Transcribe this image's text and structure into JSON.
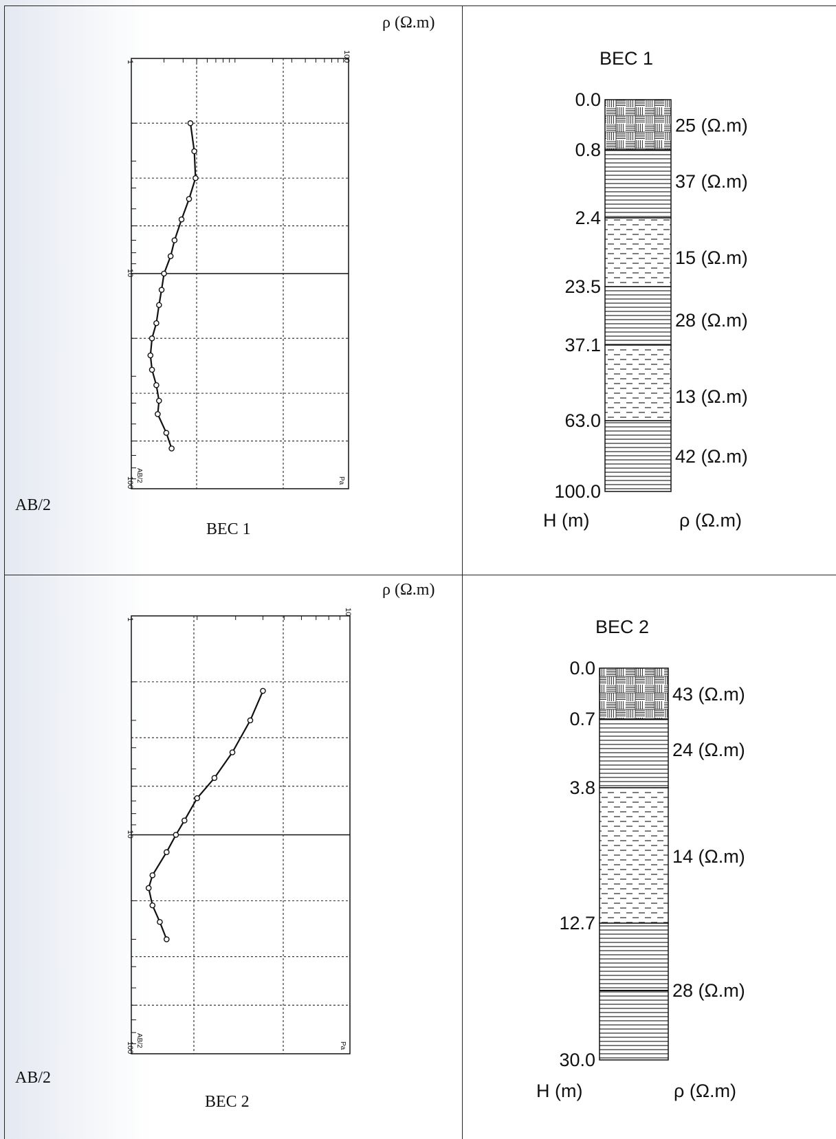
{
  "panels": [
    {
      "sounding": {
        "top_axis_label": "ρ (Ω.m)",
        "left_axis_label": "AB/2",
        "caption": "BEC 1",
        "top_tick_min": "1",
        "top_tick_max": "100",
        "left_tick_mid": "10",
        "left_tick_bottom": "100",
        "corner_left": "AB/2",
        "corner_right": "Pa"
      },
      "log": {
        "title": "BEC 1",
        "depth_label": "H (m)",
        "resistivity_label": "ρ (Ω.m)"
      }
    },
    {
      "sounding": {
        "top_axis_label": "ρ (Ω.m)",
        "left_axis_label": "AB/2",
        "caption": "BEC 2",
        "top_tick_min": "1",
        "top_tick_max": "10",
        "left_tick_mid": "10",
        "left_tick_bottom": "100",
        "corner_left": "AB/2",
        "corner_right": "Pa"
      },
      "log": {
        "title": "BEC 2",
        "depth_label": "H (m)",
        "resistivity_label": "ρ (Ω.m)"
      }
    }
  ],
  "chart_data": [
    {
      "type": "line",
      "title": "BEC 1",
      "xlabel": "ρ (Ω.m)",
      "ylabel": "AB/2",
      "x_scale": "log",
      "xlim": [
        1,
        100
      ],
      "y_scale": "log",
      "ylim": [
        1,
        100
      ],
      "y_inverted": true,
      "grid": true,
      "series": [
        {
          "x": [
            3.5,
            3.8,
            3.9,
            3.4,
            2.9,
            2.5,
            2.3,
            2.0,
            1.9,
            1.8,
            1.7,
            1.55,
            1.5,
            1.55,
            1.7,
            1.8,
            1.75,
            2.1,
            2.35
          ],
          "y": [
            2.0,
            2.7,
            3.6,
            4.5,
            5.6,
            7.0,
            8.3,
            10.0,
            11.9,
            14.0,
            17.0,
            20.0,
            24.0,
            28.0,
            33.0,
            39.0,
            45.0,
            55.0,
            65.0
          ]
        }
      ]
    },
    {
      "type": "line",
      "title": "BEC 2",
      "xlabel": "ρ (Ω.m)",
      "ylabel": "AB/2",
      "x_scale": "log",
      "xlim": [
        1,
        10
      ],
      "y_scale": "log",
      "ylim": [
        1,
        100
      ],
      "y_inverted": true,
      "grid": true,
      "series": [
        {
          "x": [
            4.0,
            3.5,
            2.9,
            2.4,
            2.0,
            1.75,
            1.6,
            1.45,
            1.25,
            1.2,
            1.25,
            1.35,
            1.45
          ],
          "y": [
            2.2,
            3.0,
            4.2,
            5.5,
            6.8,
            8.6,
            10.0,
            12.0,
            15.3,
            17.5,
            21.0,
            25.0,
            30.0
          ]
        }
      ]
    },
    {
      "type": "table",
      "title": "BEC 1",
      "columns": [
        "H (m)",
        "ρ (Ω.m)"
      ],
      "depth_max_label": "100.0",
      "layers": [
        {
          "top": "0.0",
          "resistivity": "25 (Ω.m)",
          "pattern": "brick"
        },
        {
          "top": "0.8",
          "resistivity": "37 (Ω.m)",
          "pattern": "lines"
        },
        {
          "top": "2.4",
          "resistivity": "15 (Ω.m)",
          "pattern": "dashes"
        },
        {
          "top": "23.5",
          "resistivity": "28 (Ω.m)",
          "pattern": "lines"
        },
        {
          "top": "37.1",
          "resistivity": "13 (Ω.m)",
          "pattern": "dashes"
        },
        {
          "top": "63.0",
          "resistivity": "42 (Ω.m)",
          "pattern": "lines"
        }
      ]
    },
    {
      "type": "table",
      "title": "BEC 2",
      "columns": [
        "H (m)",
        "ρ (Ω.m)"
      ],
      "depth_max_label": "30.0",
      "layers": [
        {
          "top": "0.0",
          "resistivity": "43 (Ω.m)",
          "pattern": "brick"
        },
        {
          "top": "0.7",
          "resistivity": "24 (Ω.m)",
          "pattern": "lines"
        },
        {
          "top": "3.8",
          "resistivity": "14 (Ω.m)",
          "pattern": "dashes"
        },
        {
          "top": "12.7",
          "resistivity": "28 (Ω.m)",
          "pattern": "lines"
        }
      ]
    }
  ]
}
